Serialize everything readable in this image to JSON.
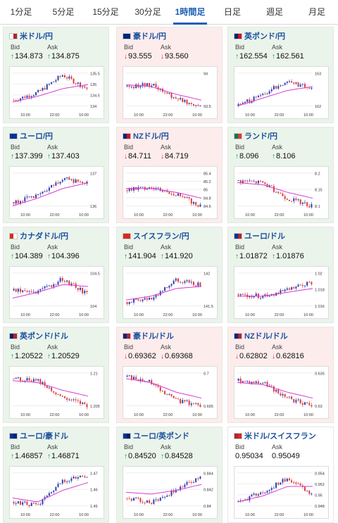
{
  "tabs": [
    {
      "label": "1分足"
    },
    {
      "label": "5分足"
    },
    {
      "label": "15分足"
    },
    {
      "label": "30分足"
    },
    {
      "label": "1時間足",
      "active": true
    },
    {
      "label": "日足"
    },
    {
      "label": "週足"
    },
    {
      "label": "月足"
    }
  ],
  "labels": {
    "bid": "Bid",
    "ask": "Ask"
  },
  "colors": {
    "up_bg": "#eaf4ea",
    "down_bg": "#fdecec",
    "up_arrow": "#1f8f3a",
    "down_arrow": "#d12d2d",
    "bull": "#2e3fb2",
    "bear": "#e23b3b",
    "ma": "#d63bd6"
  },
  "cards": [
    {
      "pair": "米ドル/円",
      "flag": [
        "#ffffff",
        "#b22234"
      ],
      "dir": "up",
      "bid": "134.873",
      "ask": "134.875",
      "chart": {
        "yticks": [
          "135.5",
          "135",
          "134.5",
          "134"
        ],
        "xticks": [
          "10:00",
          "22:00",
          "10:00"
        ],
        "trend": [
          0.25,
          0.45,
          0.9,
          0.55
        ],
        "ma": [
          0.2,
          0.35,
          0.55,
          0.65
        ]
      }
    },
    {
      "pair": "豪ドル/円",
      "flag": [
        "#00247d",
        "#00247d"
      ],
      "dir": "down",
      "bid": "93.555",
      "ask": "93.560",
      "chart": {
        "yticks": [
          "94",
          "93.5"
        ],
        "xticks": [
          "10:00",
          "22:00",
          "10:00"
        ],
        "trend": [
          0.6,
          0.65,
          0.3,
          0.1
        ],
        "ma": [
          0.65,
          0.6,
          0.4,
          0.25
        ]
      }
    },
    {
      "pair": "英ポンド/円",
      "flag": [
        "#012169",
        "#c8102e"
      ],
      "dir": "up",
      "bid": "162.554",
      "ask": "162.561",
      "chart": {
        "yticks": [
          "163",
          "162"
        ],
        "xticks": [
          "10:00",
          "22:00",
          "10:00"
        ],
        "trend": [
          0.1,
          0.4,
          0.75,
          0.55
        ],
        "ma": [
          0.1,
          0.3,
          0.5,
          0.6
        ]
      }
    },
    {
      "pair": "ユーロ/円",
      "flag": [
        "#003399",
        "#003399"
      ],
      "dir": "up",
      "bid": "137.399",
      "ask": "137.403",
      "chart": {
        "yticks": [
          "137",
          "136"
        ],
        "xticks": [
          "10:00",
          "22:00",
          "10:00"
        ],
        "trend": [
          0.2,
          0.35,
          0.8,
          0.7
        ],
        "ma": [
          0.1,
          0.3,
          0.55,
          0.7
        ]
      }
    },
    {
      "pair": "NZドル/円",
      "flag": [
        "#00247d",
        "#cc142b"
      ],
      "dir": "down",
      "bid": "84.711",
      "ask": "84.719",
      "chart": {
        "yticks": [
          "85.4",
          "85.2",
          "85",
          "84.8",
          "84.6"
        ],
        "xticks": [
          "10:00",
          "22:00",
          "10:00"
        ],
        "trend": [
          0.5,
          0.6,
          0.4,
          0.1
        ],
        "ma": [
          0.55,
          0.55,
          0.45,
          0.3
        ]
      }
    },
    {
      "pair": "ランド/円",
      "flag": [
        "#007a4d",
        "#de3831"
      ],
      "dir": "up",
      "bid": "8.096",
      "ask": "8.106",
      "chart": {
        "yticks": [
          "8.2",
          "8.15",
          "8.1"
        ],
        "xticks": [
          "10:00",
          "22:00",
          "10:00"
        ],
        "trend": [
          0.75,
          0.7,
          0.3,
          0.1
        ],
        "ma": [
          0.7,
          0.65,
          0.45,
          0.3
        ]
      }
    },
    {
      "pair": "カナダドル/円",
      "flag": [
        "#d52b1e",
        "#ffffff"
      ],
      "dir": "up",
      "bid": "104.389",
      "ask": "104.396",
      "chart": {
        "yticks": [
          "104.5",
          "104"
        ],
        "xticks": [
          "10:00",
          "22:00",
          "10:00"
        ],
        "trend": [
          0.5,
          0.45,
          0.8,
          0.4
        ],
        "ma": [
          0.3,
          0.45,
          0.65,
          0.6
        ]
      }
    },
    {
      "pair": "スイスフラン/円",
      "flag": [
        "#d52b1e",
        "#d52b1e"
      ],
      "dir": "up",
      "bid": "141.904",
      "ask": "141.920",
      "chart": {
        "yticks": [
          "142",
          "141.5"
        ],
        "xticks": [
          "10:00",
          "22:00",
          "10:00"
        ],
        "trend": [
          0.2,
          0.3,
          0.75,
          0.65
        ],
        "ma": [
          0.25,
          0.35,
          0.55,
          0.6
        ]
      }
    },
    {
      "pair": "ユーロ/ドル",
      "flag": [
        "#003399",
        "#b22234"
      ],
      "dir": "up",
      "bid": "1.01872",
      "ask": "1.01876",
      "chart": {
        "yticks": [
          "1.02",
          "1.018",
          "1.016"
        ],
        "xticks": [
          "10:00",
          "22:00",
          "10:00"
        ],
        "trend": [
          0.4,
          0.35,
          0.5,
          0.7
        ],
        "ma": [
          0.35,
          0.35,
          0.45,
          0.55
        ]
      }
    },
    {
      "pair": "英ポンド/ドル",
      "flag": [
        "#012169",
        "#b22234"
      ],
      "dir": "up",
      "bid": "1.20522",
      "ask": "1.20529",
      "chart": {
        "yticks": [
          "1.21",
          "1.205"
        ],
        "xticks": [
          "10:00",
          "22:00",
          "10:00"
        ],
        "trend": [
          0.8,
          0.75,
          0.3,
          0.1
        ],
        "ma": [
          0.75,
          0.7,
          0.5,
          0.35
        ]
      }
    },
    {
      "pair": "豪ドル/ドル",
      "flag": [
        "#00247d",
        "#b22234"
      ],
      "dir": "down",
      "bid": "0.69362",
      "ask": "0.69368",
      "chart": {
        "yticks": [
          "0.7",
          "0.695"
        ],
        "xticks": [
          "10:00",
          "22:00",
          "10:00"
        ],
        "trend": [
          0.85,
          0.7,
          0.25,
          0.1
        ],
        "ma": [
          0.8,
          0.7,
          0.45,
          0.3
        ]
      }
    },
    {
      "pair": "NZドル/ドル",
      "flag": [
        "#00247d",
        "#b22234"
      ],
      "dir": "down",
      "bid": "0.62802",
      "ask": "0.62816",
      "chart": {
        "yticks": [
          "0.635",
          "0.63"
        ],
        "xticks": [
          "10:00",
          "22:00",
          "10:00"
        ],
        "trend": [
          0.75,
          0.7,
          0.3,
          0.1
        ],
        "ma": [
          0.7,
          0.65,
          0.45,
          0.3
        ]
      }
    },
    {
      "pair": "ユーロ/豪ドル",
      "flag": [
        "#003399",
        "#00247d"
      ],
      "dir": "up",
      "bid": "1.46857",
      "ask": "1.46871",
      "chart": {
        "yticks": [
          "1.47",
          "1.46",
          "1.45"
        ],
        "xticks": [
          "10:00",
          "22:00",
          "10:00"
        ],
        "trend": [
          0.2,
          0.1,
          0.75,
          0.85
        ],
        "ma": [
          0.3,
          0.2,
          0.5,
          0.7
        ]
      }
    },
    {
      "pair": "ユーロ/英ポンド",
      "flag": [
        "#003399",
        "#012169"
      ],
      "dir": "up",
      "bid": "0.84520",
      "ask": "0.84528",
      "chart": {
        "yticks": [
          "0.844",
          "0.842",
          "0.84"
        ],
        "xticks": [
          "10:00",
          "22:00",
          "10:00"
        ],
        "trend": [
          0.3,
          0.2,
          0.5,
          0.85
        ],
        "ma": [
          0.45,
          0.4,
          0.5,
          0.65
        ]
      }
    },
    {
      "pair": "米ドル/スイスフラン",
      "flag": [
        "#b22234",
        "#d52b1e"
      ],
      "dir": "flat",
      "bid": "0.95034",
      "ask": "0.95049",
      "chart": {
        "yticks": [
          "0.954",
          "0.952",
          "0.95",
          "0.948"
        ],
        "xticks": [
          "10:00",
          "22:00",
          "10:00"
        ],
        "trend": [
          0.2,
          0.45,
          0.8,
          0.4
        ],
        "ma": [
          0.2,
          0.35,
          0.6,
          0.6
        ]
      }
    }
  ]
}
